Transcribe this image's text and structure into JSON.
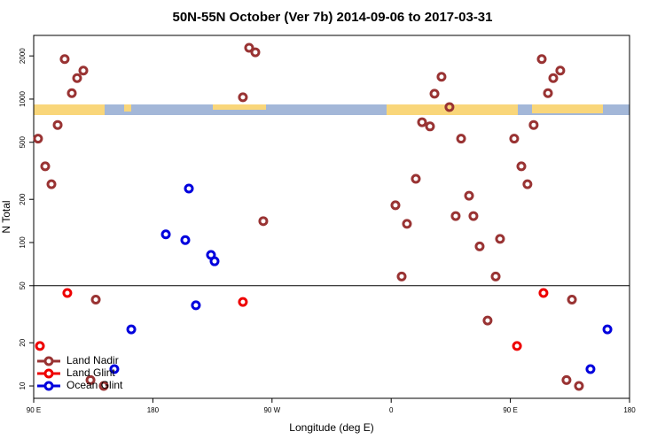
{
  "chart_data": {
    "type": "scatter",
    "title": "50N-55N October (Ver 7b)   2014-09-06 to 2017-03-31",
    "x_label": "Longitude (deg E)",
    "y_label": "N Total",
    "xlim": [
      90,
      540
    ],
    "ylim": [
      8.2,
      2780
    ],
    "log_y": true,
    "xticks": [
      {
        "value": 90,
        "label": "90 E"
      },
      {
        "value": 180,
        "label": "180"
      },
      {
        "value": 270,
        "label": "90 W"
      },
      {
        "value": 360,
        "label": "0"
      },
      {
        "value": 450,
        "label": "90 E"
      },
      {
        "value": 540,
        "label": "180"
      }
    ],
    "yticks": [
      10,
      20,
      50,
      100,
      200,
      500,
      1000,
      2000
    ],
    "reference_line": 50,
    "legend": "bottom-left",
    "series": [
      {
        "name": "Land Nadir",
        "color": "#993333",
        "x": [
          93.3,
          98.7,
          103.4,
          108.1,
          113.4,
          118.8,
          122.8,
          127.5,
          132.9,
          136.9,
          142.9,
          248.0,
          252.7,
          257.4,
          263.4,
          363.2,
          367.9,
          371.9,
          378.6,
          383.3,
          389.3,
          392.7,
          398.0,
          404.0,
          408.7,
          412.8,
          418.8,
          422.1,
          426.8,
          432.8,
          438.9,
          442.2,
          452.9,
          458.3,
          462.9,
          467.6,
          473.7,
          478.4,
          482.4,
          487.7,
          492.4,
          496.5,
          501.8
        ],
        "values": [
          530,
          340,
          255,
          660,
          1900,
          1100,
          1400,
          1580,
          11,
          40,
          10,
          1030,
          2280,
          2120,
          141,
          182,
          58,
          135,
          278,
          690,
          645,
          1090,
          1430,
          880,
          153,
          530,
          212,
          153,
          94,
          28.6,
          58,
          106,
          530,
          340,
          255,
          660,
          1900,
          1100,
          1400,
          1580,
          11,
          40,
          10
        ]
      },
      {
        "name": "Land Glint",
        "color": "#ee0000",
        "x": [
          94.7,
          115.4,
          248.0,
          455.0,
          475.0
        ],
        "values": [
          19,
          44.5,
          38.5,
          19,
          44.5
        ]
      },
      {
        "name": "Ocean Glint",
        "color": "#0000dd",
        "x": [
          150.9,
          163.7,
          189.8,
          204.5,
          207.2,
          212.5,
          223.9,
          226.6,
          510.5,
          523.3
        ],
        "values": [
          13.1,
          24.8,
          114,
          104,
          238,
          36.5,
          82,
          74,
          13.1,
          24.8
        ]
      }
    ]
  }
}
